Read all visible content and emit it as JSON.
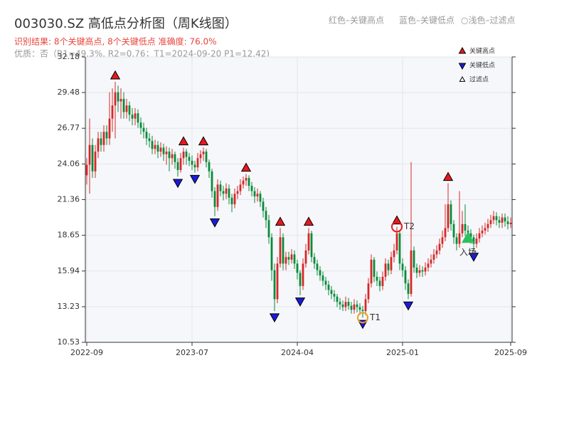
{
  "chart_data": {
    "type": "candlestick",
    "title": "003030.SZ 高低点分析图（周K线图）",
    "subtitle": "识别结果: 8个关键高点, 8个关键低点  准确度: 76.0%",
    "note": "优质：否（R1=49.3%, R2=0.76；T1=2024-09-20 P1=12.42)",
    "header_legend": [
      "红色–关键高点",
      "蓝色–关键低点",
      "○浅色–过滤点"
    ],
    "legend": [
      "关键高点",
      "关键低点",
      "过滤点"
    ],
    "up_color": "#d62728",
    "down_color": "#0a8a3a",
    "high_color": "#e8191c",
    "low_color": "#1a1adc",
    "ylim": [
      10.53,
      32.18
    ],
    "yticks": [
      10.53,
      13.23,
      15.94,
      18.65,
      21.36,
      24.06,
      26.77,
      29.48,
      32.18
    ],
    "grid": true,
    "categories": [
      "2022-09",
      null,
      null,
      null,
      null,
      null,
      null,
      null,
      null,
      null,
      null,
      null,
      null,
      null,
      null,
      null,
      null,
      null,
      null,
      null,
      null,
      null,
      null,
      null,
      null,
      null,
      null,
      null,
      null,
      null,
      null,
      null,
      null,
      null,
      null,
      null,
      null,
      "2023-07",
      null,
      null,
      null,
      null,
      null,
      null,
      null,
      null,
      null,
      null,
      null,
      null,
      null,
      null,
      null,
      null,
      null,
      null,
      null,
      null,
      null,
      null,
      null,
      null,
      null,
      null,
      null,
      null,
      null,
      null,
      null,
      null,
      null,
      null,
      null,
      null,
      "2024-04",
      null,
      null,
      null,
      null,
      null,
      null,
      null,
      null,
      null,
      null,
      null,
      null,
      null,
      null,
      null,
      null,
      null,
      null,
      null,
      null,
      null,
      null,
      null,
      null,
      null,
      null,
      null,
      null,
      null,
      null,
      null,
      null,
      null,
      null,
      null,
      null,
      "2025-01",
      null,
      null,
      null,
      null,
      null,
      null,
      null,
      null,
      null,
      null,
      null,
      null,
      null,
      null,
      null,
      null,
      null,
      null,
      null,
      null,
      null,
      null,
      null,
      null,
      null,
      null,
      null,
      null,
      null,
      null,
      null,
      null,
      null,
      null,
      null,
      null,
      null,
      "2025-09"
    ],
    "open": [
      23.2,
      24.0,
      25.5,
      23.5,
      25.0,
      26.0,
      25.5,
      26.5,
      26.0,
      27.5,
      28.5,
      29.5,
      28.8,
      29.0,
      28.0,
      28.5,
      27.8,
      27.5,
      27.9,
      27.2,
      26.8,
      26.5,
      26.0,
      25.8,
      25.2,
      25.5,
      25.0,
      25.3,
      24.8,
      25.0,
      24.5,
      24.8,
      24.2,
      23.6,
      24.5,
      25.0,
      24.6,
      24.3,
      24.0,
      23.8,
      24.5,
      24.8,
      25.0,
      24.2,
      23.5,
      22.0,
      20.8,
      22.5,
      22.0,
      21.8,
      22.2,
      21.5,
      21.0,
      21.8,
      22.0,
      22.5,
      22.8,
      23.0,
      22.4,
      22.0,
      21.6,
      21.8,
      21.2,
      20.5,
      19.8,
      18.5,
      16.0,
      13.8,
      16.5,
      18.5,
      16.5,
      17.0,
      16.8,
      17.2,
      16.5,
      15.8,
      14.8,
      16.5,
      17.5,
      18.8,
      17.0,
      16.5,
      16.0,
      15.6,
      15.2,
      14.9,
      14.5,
      14.2,
      14.0,
      13.6,
      13.4,
      13.2,
      13.6,
      13.3,
      13.0,
      13.4,
      13.2,
      13.0,
      12.9,
      13.8,
      15.0,
      16.8,
      15.5,
      15.2,
      14.8,
      15.5,
      16.5,
      16.0,
      17.0,
      17.5,
      18.8,
      16.5,
      16.0,
      15.0,
      14.2,
      17.5,
      16.2,
      15.8,
      16.0,
      15.9,
      16.2,
      16.5,
      16.8,
      17.2,
      17.5,
      18.0,
      18.5,
      19.2,
      21.0,
      19.5,
      18.5,
      18.0,
      18.8,
      19.5,
      19.0,
      18.8,
      18.5,
      18.0,
      18.4,
      18.8,
      19.0,
      19.2,
      19.5,
      19.8,
      20.1,
      19.8,
      19.6,
      20.0,
      19.7,
      19.5
    ],
    "close": [
      24.0,
      25.5,
      23.5,
      25.0,
      26.0,
      25.5,
      26.5,
      26.0,
      27.5,
      28.5,
      29.5,
      28.8,
      29.0,
      28.0,
      28.5,
      27.8,
      27.5,
      27.9,
      27.2,
      26.8,
      26.5,
      26.0,
      25.8,
      25.2,
      25.5,
      25.0,
      25.3,
      24.8,
      25.0,
      24.5,
      24.8,
      24.2,
      23.6,
      24.5,
      25.0,
      24.6,
      24.3,
      24.0,
      23.8,
      24.5,
      24.8,
      25.0,
      24.2,
      23.5,
      22.0,
      20.8,
      22.5,
      22.0,
      21.8,
      22.2,
      21.5,
      21.0,
      21.8,
      22.0,
      22.5,
      22.8,
      23.0,
      22.4,
      22.0,
      21.6,
      21.8,
      21.2,
      20.5,
      19.8,
      18.5,
      16.0,
      13.8,
      16.5,
      18.5,
      16.5,
      17.0,
      16.8,
      17.2,
      16.5,
      15.8,
      14.8,
      16.5,
      17.5,
      18.8,
      17.0,
      16.5,
      16.0,
      15.6,
      15.2,
      14.9,
      14.5,
      14.2,
      14.0,
      13.6,
      13.4,
      13.2,
      13.6,
      13.3,
      13.0,
      13.4,
      13.2,
      13.0,
      12.9,
      13.8,
      15.0,
      16.8,
      15.5,
      15.2,
      14.8,
      15.5,
      16.5,
      16.0,
      17.0,
      17.5,
      18.8,
      16.5,
      16.0,
      15.0,
      14.2,
      17.5,
      16.2,
      15.8,
      16.0,
      15.9,
      16.2,
      16.5,
      16.8,
      17.2,
      17.5,
      18.0,
      18.5,
      19.2,
      21.0,
      19.5,
      18.5,
      18.0,
      18.8,
      19.5,
      19.0,
      18.8,
      18.5,
      18.0,
      18.4,
      18.8,
      19.0,
      19.2,
      19.5,
      19.8,
      20.1,
      19.8,
      19.6,
      20.0,
      19.7,
      19.5,
      19.6
    ],
    "high": [
      24.5,
      27.5,
      26.0,
      25.5,
      26.5,
      26.5,
      27.0,
      27.0,
      29.5,
      29.8,
      30.3,
      30.0,
      29.8,
      29.5,
      29.0,
      28.8,
      28.3,
      28.3,
      28.2,
      27.6,
      27.2,
      26.8,
      26.4,
      26.2,
      25.9,
      25.8,
      25.7,
      25.6,
      25.4,
      25.3,
      25.2,
      25.0,
      24.5,
      24.9,
      25.3,
      25.2,
      24.9,
      24.7,
      24.3,
      24.9,
      25.1,
      25.3,
      25.2,
      24.4,
      23.7,
      22.3,
      22.9,
      22.8,
      22.4,
      22.6,
      22.5,
      21.8,
      22.2,
      22.4,
      22.9,
      23.1,
      23.3,
      23.2,
      22.7,
      22.3,
      22.2,
      22.0,
      21.5,
      20.8,
      20.2,
      18.8,
      16.5,
      17.0,
      19.2,
      18.8,
      17.4,
      17.4,
      17.6,
      17.5,
      16.8,
      16.0,
      16.9,
      18.0,
      19.2,
      19.0,
      17.3,
      16.8,
      16.3,
      15.9,
      15.5,
      15.2,
      14.8,
      14.5,
      14.2,
      13.9,
      13.7,
      14.0,
      13.9,
      13.6,
      13.8,
      13.7,
      13.5,
      13.3,
      14.2,
      15.4,
      17.2,
      17.0,
      15.9,
      15.5,
      15.9,
      16.9,
      16.8,
      17.4,
      18.0,
      19.3,
      19.0,
      16.9,
      16.3,
      15.3,
      24.2,
      17.8,
      16.5,
      16.4,
      16.3,
      16.6,
      16.9,
      17.2,
      17.6,
      17.9,
      18.4,
      19.0,
      21.0,
      22.6,
      21.3,
      19.8,
      18.8,
      22.0,
      20.5,
      21.0,
      19.4,
      19.1,
      18.7,
      18.8,
      19.2,
      19.4,
      19.6,
      19.9,
      20.2,
      20.5,
      20.4,
      20.1,
      20.3,
      20.3,
      20.1,
      20.0
    ],
    "low": [
      22.5,
      21.8,
      23.0,
      23.0,
      24.5,
      25.0,
      25.0,
      25.5,
      25.5,
      26.5,
      26.0,
      28.0,
      27.5,
      27.5,
      27.5,
      27.3,
      27.0,
      27.0,
      26.8,
      26.3,
      26.0,
      25.5,
      25.3,
      24.8,
      24.8,
      24.5,
      24.6,
      24.3,
      24.0,
      23.5,
      24.0,
      23.7,
      23.1,
      23.4,
      24.0,
      24.0,
      23.9,
      23.6,
      23.4,
      23.5,
      24.1,
      24.3,
      23.8,
      23.0,
      21.5,
      20.1,
      20.5,
      21.6,
      21.3,
      21.4,
      21.0,
      20.4,
      20.7,
      21.4,
      21.7,
      22.2,
      22.4,
      22.0,
      21.6,
      21.1,
      21.2,
      20.8,
      20.0,
      19.2,
      18.0,
      15.2,
      12.9,
      13.5,
      16.2,
      16.0,
      16.0,
      16.4,
      16.5,
      16.1,
      15.3,
      14.1,
      14.5,
      16.2,
      17.2,
      16.6,
      16.1,
      15.6,
      15.2,
      14.8,
      14.5,
      14.1,
      13.8,
      13.6,
      13.2,
      13.0,
      12.9,
      12.9,
      13.0,
      12.7,
      12.7,
      12.8,
      12.6,
      12.4,
      12.6,
      13.5,
      14.7,
      15.1,
      14.8,
      14.4,
      14.5,
      15.2,
      15.6,
      15.7,
      16.6,
      17.2,
      16.0,
      15.5,
      14.5,
      13.8,
      14.0,
      15.8,
      15.4,
      15.5,
      15.5,
      15.6,
      15.9,
      16.2,
      16.5,
      16.9,
      17.2,
      17.7,
      18.2,
      18.9,
      19.0,
      18.0,
      17.5,
      17.7,
      18.5,
      18.6,
      18.3,
      18.0,
      17.5,
      17.7,
      18.1,
      18.5,
      18.7,
      18.9,
      19.2,
      19.5,
      19.4,
      19.2,
      19.2,
      19.3,
      19.1,
      19.2
    ],
    "key_highs": [
      {
        "index": 10,
        "price": 30.3
      },
      {
        "index": 34,
        "price": 25.3
      },
      {
        "index": 41,
        "price": 25.3
      },
      {
        "index": 56,
        "price": 23.3
      },
      {
        "index": 68,
        "price": 19.2
      },
      {
        "index": 78,
        "price": 19.2
      },
      {
        "index": 109,
        "price": 19.3
      },
      {
        "index": 127,
        "price": 22.6
      }
    ],
    "key_lows": [
      {
        "index": 32,
        "price": 23.1
      },
      {
        "index": 38,
        "price": 23.4
      },
      {
        "index": 45,
        "price": 20.1
      },
      {
        "index": 66,
        "price": 12.9
      },
      {
        "index": 75,
        "price": 14.1
      },
      {
        "index": 97,
        "price": 12.4
      },
      {
        "index": 113,
        "price": 13.8
      },
      {
        "index": 136,
        "price": 17.5
      }
    ],
    "annotations": [
      {
        "label": "T1",
        "index": 97,
        "price": 12.4,
        "color": "#f0a020"
      },
      {
        "label": "T2",
        "index": 109,
        "price": 19.3,
        "color": "#e8191c"
      },
      {
        "label": "入场",
        "index": 134,
        "price": 18.4,
        "color": "#2fbf60"
      }
    ]
  }
}
